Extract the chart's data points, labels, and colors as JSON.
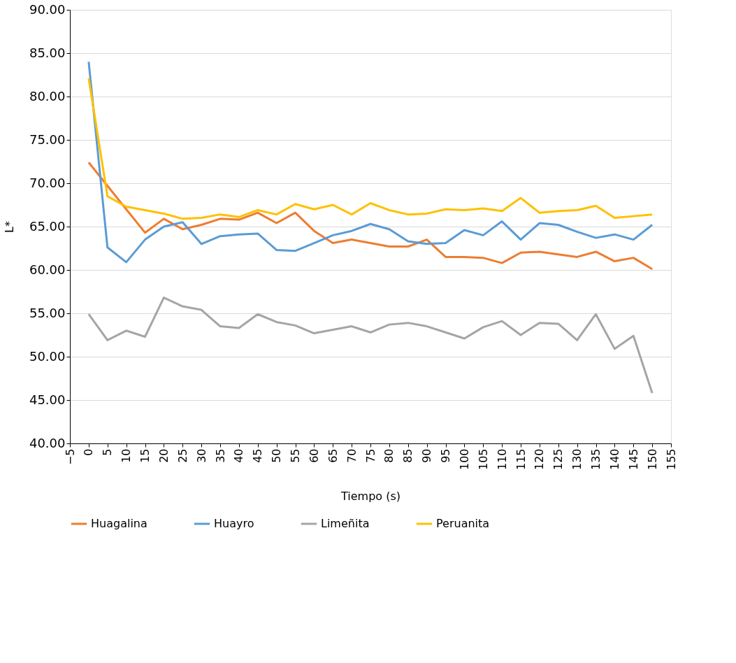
{
  "chart_data": {
    "type": "line",
    "xlabel": "Tiempo (s)",
    "ylabel": "L*",
    "x": [
      0,
      5,
      10,
      15,
      20,
      25,
      30,
      35,
      40,
      45,
      50,
      55,
      60,
      65,
      70,
      75,
      80,
      85,
      90,
      95,
      100,
      105,
      110,
      115,
      120,
      125,
      130,
      135,
      140,
      145,
      150
    ],
    "series": [
      {
        "name": "Huagalina",
        "color": "#ed7d31",
        "values": [
          72.4,
          69.7,
          67.0,
          64.3,
          65.9,
          64.7,
          65.2,
          65.9,
          65.8,
          66.6,
          65.4,
          66.6,
          64.5,
          63.1,
          63.5,
          63.1,
          62.7,
          62.7,
          63.5,
          61.5,
          61.5,
          61.4,
          60.8,
          62.0,
          62.1,
          61.8,
          61.5,
          62.1,
          61.0,
          61.4,
          60.1
        ]
      },
      {
        "name": "Huayro",
        "color": "#5b9bd5",
        "values": [
          84.0,
          62.6,
          60.9,
          63.5,
          65.0,
          65.5,
          63.0,
          63.9,
          64.1,
          64.2,
          62.3,
          62.2,
          63.1,
          64.0,
          64.5,
          65.3,
          64.7,
          63.3,
          63.0,
          63.1,
          64.6,
          64.0,
          65.6,
          63.5,
          65.4,
          65.2,
          64.4,
          63.7,
          64.1,
          63.5,
          65.2
        ]
      },
      {
        "name": "Limeñita",
        "color": "#a5a5a5",
        "values": [
          54.9,
          51.9,
          53.0,
          52.3,
          56.8,
          55.8,
          55.4,
          53.5,
          53.3,
          54.9,
          54.0,
          53.6,
          52.7,
          53.1,
          53.5,
          52.8,
          53.7,
          53.9,
          53.5,
          52.8,
          52.1,
          53.4,
          54.1,
          52.5,
          53.9,
          53.8,
          51.9,
          54.9,
          50.9,
          52.4,
          45.8
        ]
      },
      {
        "name": "Peruanita",
        "color": "#ffc000",
        "values": [
          82.1,
          68.5,
          67.3,
          66.9,
          66.5,
          65.9,
          66.0,
          66.4,
          66.1,
          66.9,
          66.4,
          67.6,
          67.0,
          67.5,
          66.4,
          67.7,
          66.9,
          66.4,
          66.5,
          67.0,
          66.9,
          67.1,
          66.8,
          68.3,
          66.6,
          66.8,
          66.9,
          67.4,
          66.0,
          66.2,
          66.4
        ]
      }
    ],
    "xlim": [
      -5,
      155
    ],
    "xticks": [
      -5,
      0,
      5,
      10,
      15,
      20,
      25,
      30,
      35,
      40,
      45,
      50,
      55,
      60,
      65,
      70,
      75,
      80,
      85,
      90,
      95,
      100,
      105,
      110,
      115,
      120,
      125,
      130,
      135,
      140,
      145,
      150,
      155
    ],
    "ylim": [
      40,
      90
    ],
    "yticks": [
      {
        "value": 40,
        "label": "40.00"
      },
      {
        "value": 45,
        "label": "45.00"
      },
      {
        "value": 50,
        "label": "50.00"
      },
      {
        "value": 55,
        "label": "55.00"
      },
      {
        "value": 60,
        "label": "60.00"
      },
      {
        "value": 65,
        "label": "65.00"
      },
      {
        "value": 70,
        "label": "70.00"
      },
      {
        "value": 75,
        "label": "75.00"
      },
      {
        "value": 80,
        "label": "80.00"
      },
      {
        "value": 85,
        "label": "85.00"
      },
      {
        "value": 90,
        "label": "90.00"
      }
    ],
    "grid": "y",
    "legend": "bottom",
    "marker": "none",
    "line_style": "solid"
  }
}
